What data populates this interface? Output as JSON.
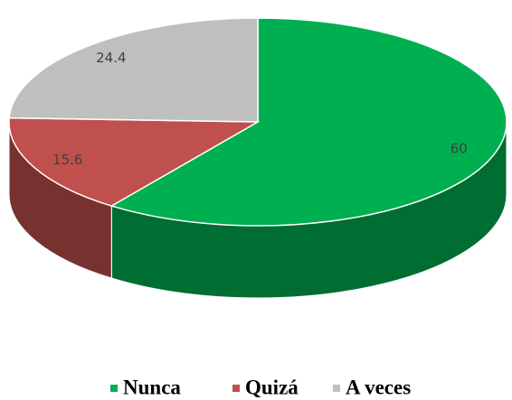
{
  "chart_data": {
    "type": "pie",
    "categories": [
      "Nunca",
      "Quizá",
      "A veces"
    ],
    "values": [
      60,
      15.6,
      24.4
    ],
    "colors": [
      "#00b050",
      "#c0504d",
      "#bfbfbf"
    ],
    "legend": "bottom"
  }
}
